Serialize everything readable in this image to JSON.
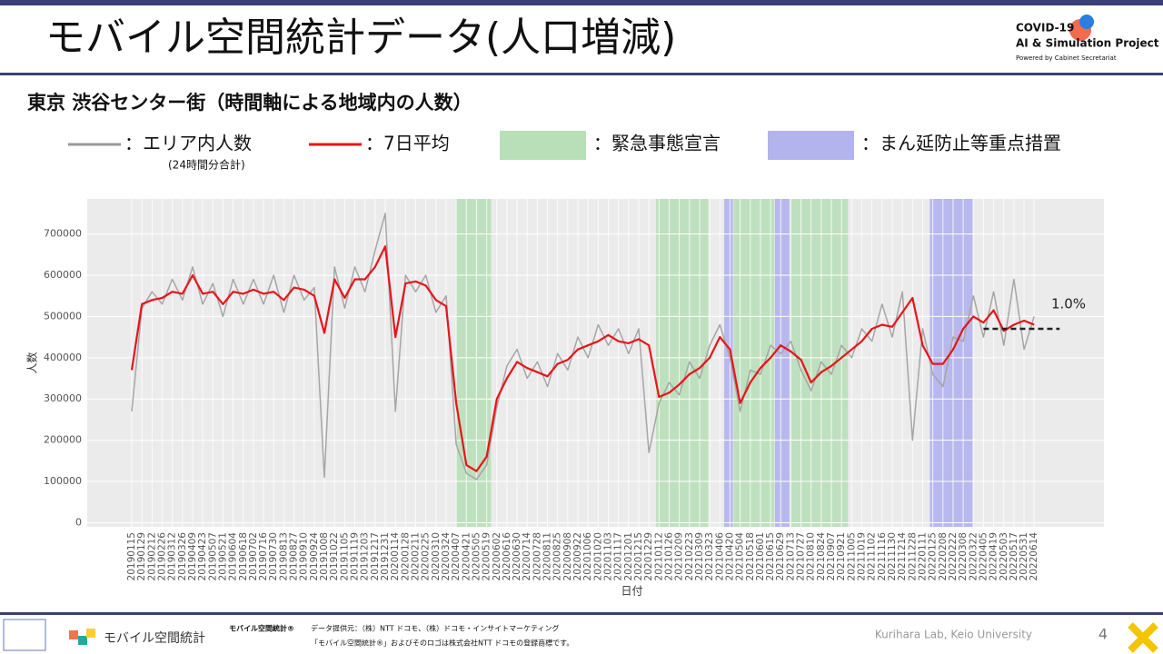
{
  "header": {
    "title": "モバイル空間統計データ(人口増減)",
    "logo_line1": "COVID-19",
    "logo_line2": "AI & Simulation Project",
    "logo_line3": "Powered by Cabinet Secretariat"
  },
  "footer": {
    "brand": "モバイル空間統計",
    "brand_reg": "モバイル空間統計®",
    "source": "データ提供元：（株）NTT ドコモ、（株）ドコモ・インサイトマーケティング",
    "trademark": "「モバイル空間統計®」およびそのロゴは株式会社NTT ドコモの登録商標です。",
    "lab": "Kurihara Lab, Keio University",
    "page": "4"
  },
  "chart_data": {
    "type": "line",
    "title": "東京 渋谷センター街（時間軸による地域内の人数）",
    "legend": [
      {
        "label": "：エリア内人数",
        "note": "(24時間分合計)",
        "color": "#999999",
        "kind": "line"
      },
      {
        "label": "：7日平均",
        "color": "#e8141a",
        "kind": "line"
      },
      {
        "label": "：緊急事態宣言",
        "color": "#b9dfb9",
        "kind": "box"
      },
      {
        "label": "：まん延防止等重点措置",
        "color": "#b3b3ee",
        "kind": "box"
      }
    ],
    "x_label": "日付",
    "y_label": "人数",
    "categories": [
      "20190115",
      "20190129",
      "20190212",
      "20190226",
      "20190312",
      "20190326",
      "20190409",
      "20190423",
      "20190507",
      "20190521",
      "20190604",
      "20190618",
      "20190702",
      "20190716",
      "20190730",
      "20190813",
      "20190827",
      "20190910",
      "20190924",
      "20191008",
      "20191022",
      "20191105",
      "20191119",
      "20191203",
      "20191217",
      "20191231",
      "20200114",
      "20200128",
      "20200211",
      "20200225",
      "20200310",
      "20200324",
      "20200407",
      "20200421",
      "20200505",
      "20200519",
      "20200602",
      "20200616",
      "20200630",
      "20200714",
      "20200728",
      "20200811",
      "20200825",
      "20200908",
      "20200922",
      "20201006",
      "20201020",
      "20201103",
      "20201117",
      "20201201",
      "20201215",
      "20201229",
      "20210112",
      "20210126",
      "20210209",
      "20210223",
      "20210309",
      "20210323",
      "20210406",
      "20210420",
      "20210504",
      "20210518",
      "20210601",
      "20210615",
      "20210629",
      "20210713",
      "20210727",
      "20210810",
      "20210824",
      "20210907",
      "20210921",
      "20211005",
      "20211019",
      "20211102",
      "20211116",
      "20211130",
      "20211214",
      "20211228",
      "20220111",
      "20220125",
      "20220208",
      "20220222",
      "20220308",
      "20220322",
      "20220405",
      "20220419",
      "20220503",
      "20220517",
      "20220531",
      "20220614"
    ],
    "series": [
      {
        "name": "エリア内人数",
        "color": "#a6a6a6",
        "values": [
          270000,
          520000,
          560000,
          530000,
          590000,
          540000,
          620000,
          530000,
          580000,
          500000,
          590000,
          530000,
          590000,
          530000,
          600000,
          510000,
          600000,
          540000,
          570000,
          110000,
          620000,
          520000,
          620000,
          560000,
          660000,
          750000,
          270000,
          600000,
          560000,
          600000,
          510000,
          550000,
          190000,
          120000,
          105000,
          140000,
          280000,
          380000,
          420000,
          350000,
          390000,
          330000,
          410000,
          370000,
          450000,
          400000,
          480000,
          430000,
          470000,
          410000,
          470000,
          170000,
          290000,
          340000,
          310000,
          390000,
          350000,
          430000,
          480000,
          400000,
          270000,
          370000,
          360000,
          430000,
          410000,
          440000,
          370000,
          320000,
          390000,
          360000,
          430000,
          400000,
          470000,
          440000,
          530000,
          450000,
          560000,
          200000,
          470000,
          360000,
          330000,
          450000,
          440000,
          550000,
          450000,
          560000,
          430000,
          590000,
          420000,
          500000
        ]
      },
      {
        "name": "7日平均",
        "color": "#e8141a",
        "values": [
          370000,
          530000,
          540000,
          545000,
          560000,
          555000,
          600000,
          555000,
          560000,
          530000,
          560000,
          555000,
          565000,
          555000,
          560000,
          540000,
          570000,
          565000,
          550000,
          460000,
          590000,
          545000,
          590000,
          590000,
          620000,
          670000,
          450000,
          580000,
          585000,
          575000,
          540000,
          525000,
          290000,
          140000,
          125000,
          160000,
          300000,
          350000,
          390000,
          375000,
          365000,
          355000,
          385000,
          395000,
          420000,
          430000,
          440000,
          455000,
          440000,
          435000,
          445000,
          430000,
          305000,
          315000,
          335000,
          360000,
          375000,
          400000,
          450000,
          420000,
          290000,
          340000,
          375000,
          400000,
          430000,
          415000,
          395000,
          340000,
          365000,
          380000,
          400000,
          420000,
          440000,
          470000,
          480000,
          475000,
          510000,
          545000,
          430000,
          385000,
          385000,
          420000,
          470000,
          500000,
          485000,
          515000,
          465000,
          480000,
          490000,
          480000
        ]
      }
    ],
    "spans": [
      {
        "start": "20200407",
        "end": "20200525",
        "color": "#b9dfb9"
      },
      {
        "start": "20210108",
        "end": "20210321",
        "color": "#b9dfb9"
      },
      {
        "start": "20210412",
        "end": "20210424",
        "color": "#b3b3ee"
      },
      {
        "start": "20210425",
        "end": "20210620",
        "color": "#b9dfb9"
      },
      {
        "start": "20210621",
        "end": "20210711",
        "color": "#b3b3ee"
      },
      {
        "start": "20210712",
        "end": "20210930",
        "color": "#b9dfb9"
      },
      {
        "start": "20220121",
        "end": "20220321",
        "color": "#b3b3ee"
      }
    ],
    "reference": {
      "value": 470000,
      "label": "1.0%"
    },
    "ylim": [
      -10000,
      785000
    ],
    "yticks": [
      0,
      100000,
      200000,
      300000,
      400000,
      500000,
      600000,
      700000
    ],
    "grid": true
  }
}
